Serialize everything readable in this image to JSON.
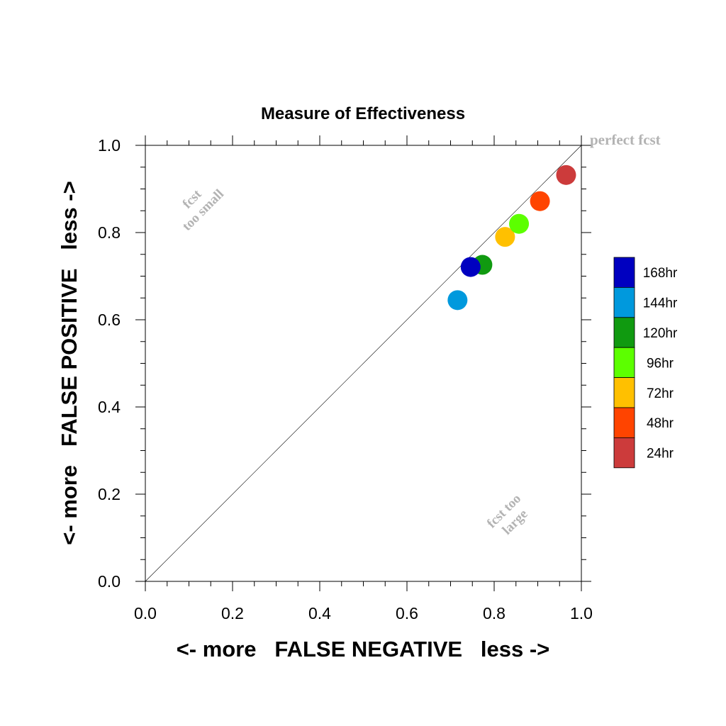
{
  "chart_data": {
    "type": "scatter",
    "title": "Measure of Effectiveness",
    "xlabel": "<- more   FALSE NEGATIVE   less ->",
    "ylabel": "<- more   FALSE POSITIVE   less ->",
    "xlim": [
      0,
      1
    ],
    "ylim": [
      0,
      1
    ],
    "x_ticks": [
      "0.0",
      "0.2",
      "0.4",
      "0.6",
      "0.8",
      "1.0"
    ],
    "y_ticks": [
      "0.0",
      "0.2",
      "0.4",
      "0.6",
      "0.8",
      "1.0"
    ],
    "grid": false,
    "legend_position": "right",
    "reference_line": {
      "from": [
        0,
        0
      ],
      "to": [
        1,
        1
      ]
    },
    "annotations": {
      "perfect": "perfect fcst",
      "small_line1": "fcst",
      "small_line2": "too small",
      "large_line1": "fcst too",
      "large_line2": "large"
    },
    "series": [
      {
        "name": "24hr",
        "color": "#cc3b3b",
        "x": 0.965,
        "y": 0.932
      },
      {
        "name": "48hr",
        "color": "#ff4400",
        "x": 0.905,
        "y": 0.872
      },
      {
        "name": "72hr",
        "color": "#ffc000",
        "x": 0.825,
        "y": 0.79
      },
      {
        "name": "96hr",
        "color": "#5cff00",
        "x": 0.857,
        "y": 0.82
      },
      {
        "name": "120hr",
        "color": "#109a10",
        "x": 0.773,
        "y": 0.726
      },
      {
        "name": "144hr",
        "color": "#0099dd",
        "x": 0.716,
        "y": 0.645
      },
      {
        "name": "168hr",
        "color": "#0000c0",
        "x": 0.746,
        "y": 0.721
      }
    ],
    "legend_order": [
      "168hr",
      "144hr",
      "120hr",
      "96hr",
      "72hr",
      "48hr",
      "24hr"
    ]
  }
}
